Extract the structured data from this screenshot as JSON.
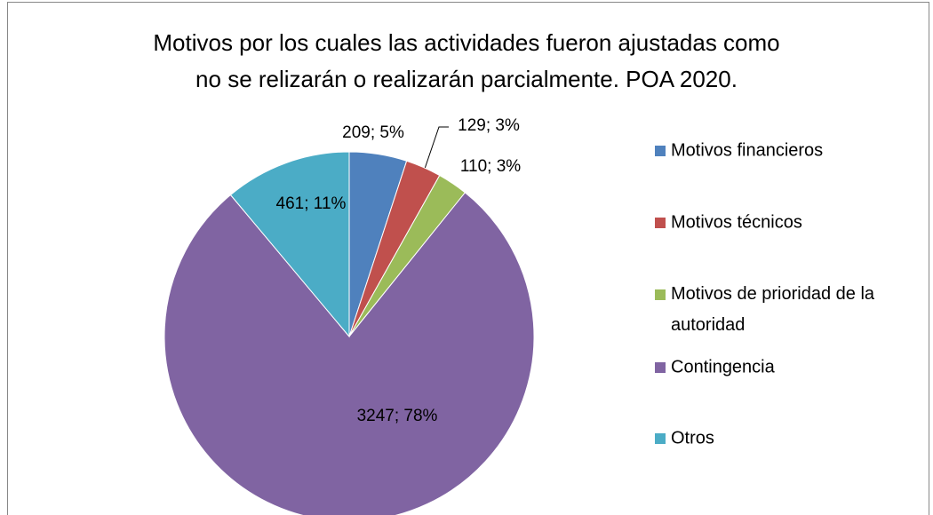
{
  "chart_data": {
    "type": "pie",
    "title": [
      "Motivos por los cuales las actividades fueron ajustadas como",
      "no se relizarán  o realizarán parcialmente. POA 2020."
    ],
    "categories": [
      "Motivos financieros",
      "Motivos técnicos",
      "Motivos de prioridad de la autoridad",
      "Contingencia",
      "Otros"
    ],
    "values": [
      209,
      129,
      110,
      3247,
      461
    ],
    "value_labels": [
      "209; 5%",
      "129; 3%",
      "110; 3%",
      "3247; 78%",
      "461; 11%"
    ],
    "colors": [
      "#4F81BD",
      "#C0504D",
      "#9BBB59",
      "#8064A2",
      "#4BACC6"
    ],
    "legend": "right"
  }
}
